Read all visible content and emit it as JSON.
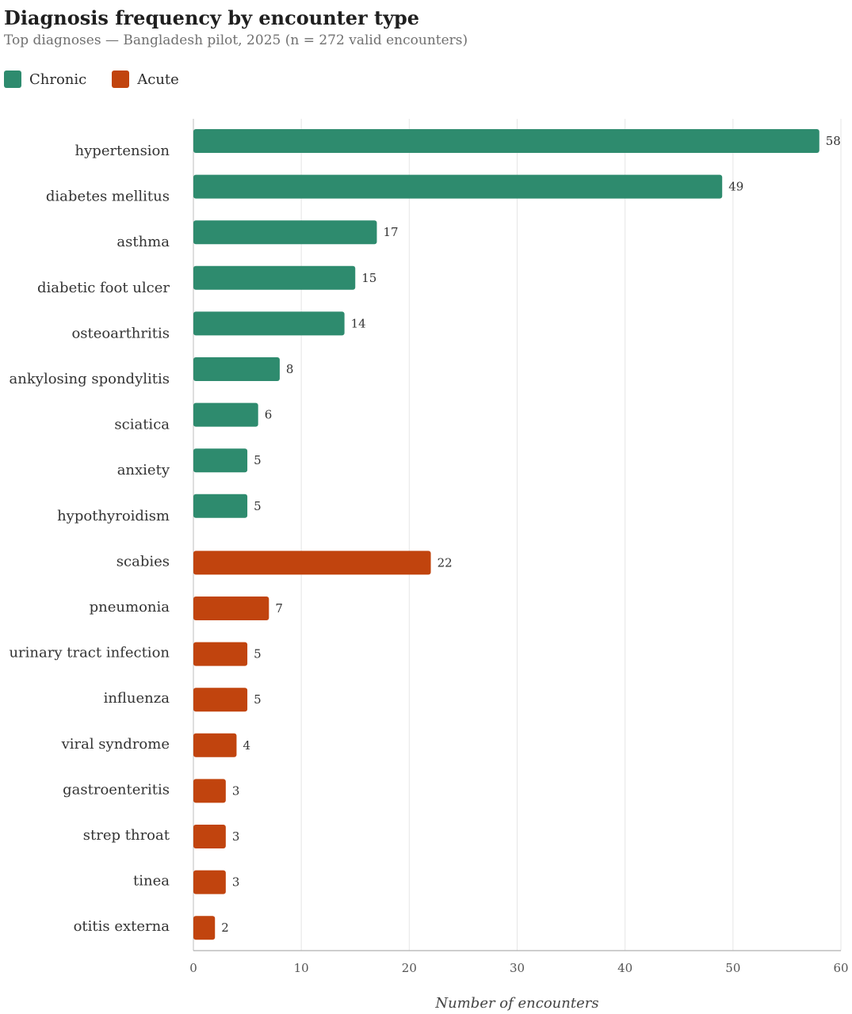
{
  "chart_data": {
    "type": "bar",
    "orientation": "horizontal",
    "title": "Diagnosis frequency by encounter type",
    "subtitle": "Top diagnoses — Bangladesh pilot, 2025 (n = 272 valid encounters)",
    "xlabel": "Number of encounters",
    "ylabel": "",
    "xlim": [
      0,
      60
    ],
    "x_ticks": [
      0,
      10,
      20,
      30,
      40,
      50,
      60
    ],
    "grid": "vertical",
    "legend_position": "top-left",
    "legend": [
      {
        "name": "Chronic",
        "color": "#2e8b6e"
      },
      {
        "name": "Acute",
        "color": "#c1440e"
      }
    ],
    "series": [
      {
        "name": "Chronic",
        "color": "#2e8b6e",
        "categories": [
          "hypertension",
          "diabetes mellitus",
          "asthma",
          "diabetic foot ulcer",
          "osteoarthritis",
          "ankylosing spondylitis",
          "sciatica",
          "anxiety",
          "hypothyroidism"
        ],
        "values": [
          58,
          49,
          17,
          15,
          14,
          8,
          6,
          5,
          5
        ]
      },
      {
        "name": "Acute",
        "color": "#c1440e",
        "categories": [
          "scabies",
          "pneumonia",
          "urinary tract infection",
          "influenza",
          "viral syndrome",
          "gastroenteritis",
          "strep throat",
          "tinea",
          "otitis externa"
        ],
        "values": [
          22,
          7,
          5,
          5,
          4,
          3,
          3,
          3,
          2
        ]
      }
    ]
  }
}
